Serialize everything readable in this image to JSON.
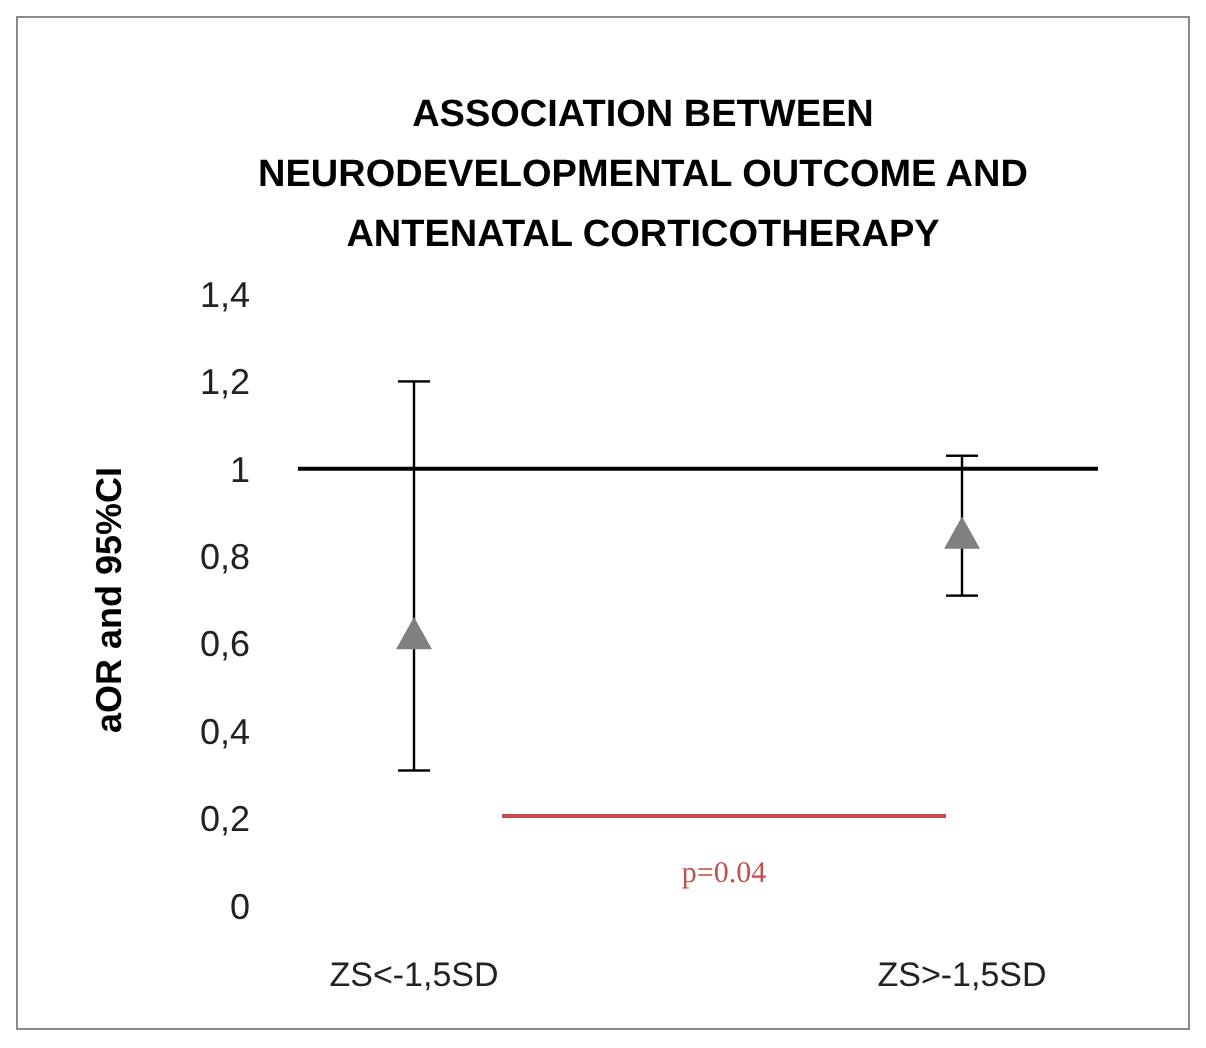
{
  "chart_data": {
    "type": "scatter",
    "title": "ASSOCIATION BETWEEN NEURODEVELOPMENTAL OUTCOME AND ANTENATAL CORTICOTHERAPY",
    "ylabel": "aOR and 95%CI",
    "categories": [
      "ZS<-1,5SD",
      "ZS>-1,5SD"
    ],
    "series": [
      {
        "color": "#808080",
        "values": [
          0.62,
          0.85
        ],
        "errors": [
          [
            0.31,
            1.2
          ],
          [
            0.71,
            1.03
          ]
        ]
      }
    ],
    "marker": "triangle",
    "ylim": [
      0,
      1.4
    ],
    "yticks": [
      0,
      {
        "value": 0.2,
        "label": "0,2"
      },
      {
        "value": 0.4,
        "label": "0,4"
      },
      {
        "value": 0.6,
        "label": "0,6"
      },
      {
        "value": 0.8,
        "label": "0,8"
      },
      1,
      {
        "value": 1.2,
        "label": "1,2"
      },
      {
        "value": 1.4,
        "label": "1,4"
      }
    ],
    "ref_lines": [
      {
        "axis": "y",
        "value": 1,
        "color": "#000000"
      }
    ],
    "annotations": [
      "p=0.04"
    ],
    "grid": false,
    "legend": false
  }
}
